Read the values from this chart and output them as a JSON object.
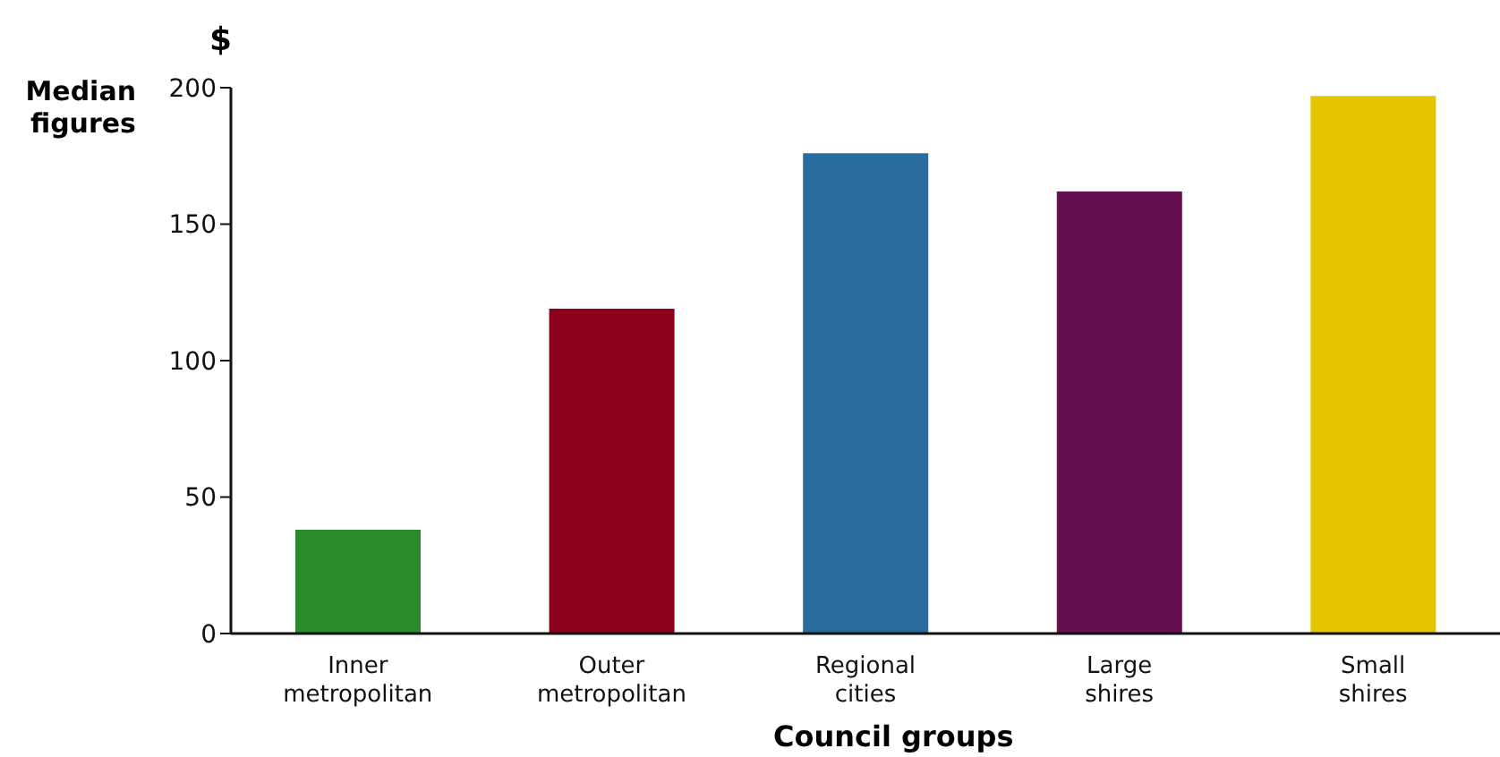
{
  "chart_data": {
    "type": "bar",
    "xlabel": "Council groups",
    "ylabel": "Median figures",
    "annotations": [
      "$"
    ],
    "categories": [
      "Inner metropolitan",
      "Outer metropolitan",
      "Regional cities",
      "Large shires",
      "Small shires"
    ],
    "values": [
      38,
      119,
      176,
      162,
      197
    ],
    "colors": [
      "#2a8a2c",
      "#8c001c",
      "#2a6c9e",
      "#660f50",
      "#e3c600"
    ],
    "ylim": [
      0,
      200
    ],
    "yticks": [
      0,
      50,
      100,
      150,
      200
    ],
    "grid": false,
    "legend": false
  }
}
